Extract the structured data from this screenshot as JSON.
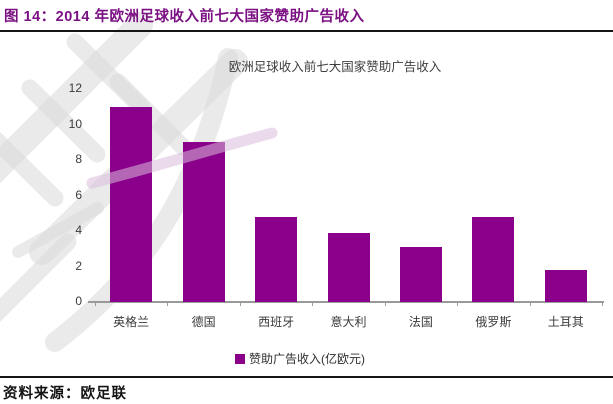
{
  "header": {
    "title": "图 14：2014 年欧洲足球收入前七大国家赞助广告收入"
  },
  "chart_data": {
    "type": "bar",
    "title": "欧洲足球收入前七大国家赞助广告收入",
    "categories": [
      "英格兰",
      "德国",
      "西班牙",
      "意大利",
      "法国",
      "俄罗斯",
      "土耳其"
    ],
    "values": [
      11,
      9,
      4.8,
      3.9,
      3.1,
      4.8,
      1.8
    ],
    "legend_label": "赞助广告收入(亿欧元)",
    "xlabel": "",
    "ylabel": "",
    "unit": "亿欧元",
    "ylim": [
      0,
      12
    ],
    "yticks": [
      0,
      2,
      4,
      6,
      8,
      10,
      12
    ],
    "grid": false,
    "legend_position": "bottom-center",
    "bar_color": "#8B008B"
  },
  "footer": {
    "source": "资料来源：欧足联"
  },
  "colors": {
    "bar": "#8B008B",
    "header_title": "#7B1083",
    "divider": "#141414",
    "axis": "#9A9A9A",
    "text": "#3A3A3A",
    "watermark_gray": "#D8D8D8",
    "watermark_purple": "#D9BBDA"
  }
}
